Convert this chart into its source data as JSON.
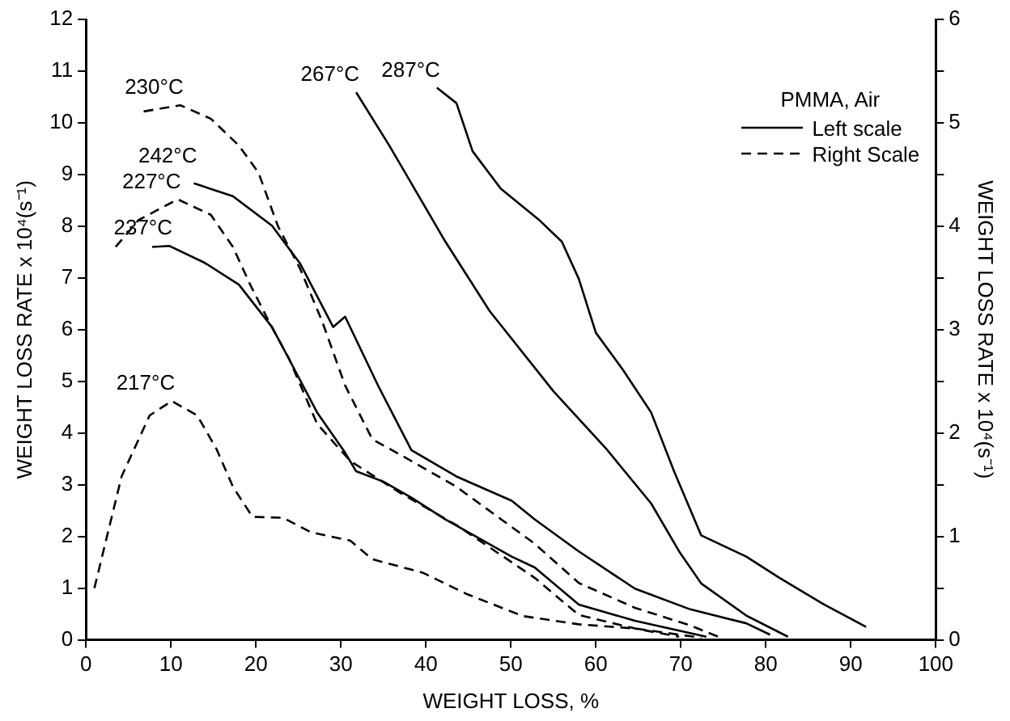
{
  "chart_data": {
    "type": "line",
    "xlabel": "WEIGHT LOSS, %",
    "ylabel": "WEIGHT LOSS RATE x 10⁴(s⁻¹)",
    "y2label": "WEIGHT LOSS RATE x 10⁴(s⁻¹)",
    "legend_title": "PMMA, Air",
    "grid": false,
    "marker": "none",
    "xlim": [
      0,
      100
    ],
    "xticks": [
      0,
      10,
      20,
      30,
      40,
      50,
      60,
      70,
      80,
      90,
      100
    ],
    "ylim": [
      0,
      12
    ],
    "yticks": [
      0,
      1,
      2,
      3,
      4,
      5,
      6,
      7,
      8,
      9,
      10,
      11,
      12
    ],
    "y2lim": [
      0,
      6
    ],
    "y2ticks": [
      0,
      {
        "value": 0.5,
        "label": null
      },
      1,
      {
        "value": 1.5,
        "label": null
      },
      2,
      {
        "value": 2.5,
        "label": null
      },
      3,
      {
        "value": 3.5,
        "label": null
      },
      4,
      {
        "value": 4.5,
        "label": null
      },
      5,
      {
        "value": 5.5,
        "label": null
      },
      6
    ],
    "series": [
      {
        "name": "217°C",
        "color": "#000000",
        "line_style": "dashed",
        "axis": "y2",
        "x": [
          1.0,
          4.2,
          7.5,
          10.1,
          13.1,
          15.4,
          17.3,
          19.6,
          23.2,
          26.5,
          31.1,
          33.7,
          39.6,
          44.9,
          51.4,
          58,
          64.6,
          72.4
        ],
        "values": [
          0.5,
          1.58,
          2.17,
          2.31,
          2.17,
          1.84,
          1.48,
          1.19,
          1.18,
          1.04,
          0.96,
          0.78,
          0.65,
          0.44,
          0.23,
          0.15,
          0.11,
          0.02
        ]
      },
      {
        "name": "227°C",
        "color": "#000000",
        "line_style": "dashed",
        "axis": "y2",
        "x": [
          3.5,
          6.2,
          10.8,
          14.7,
          17.3,
          19.3,
          21.9,
          23.9,
          27.2,
          31.1,
          37,
          43.6,
          50.1,
          52.8,
          58,
          64.6,
          69.8
        ],
        "values": [
          3.8,
          4.06,
          4.26,
          4.11,
          3.8,
          3.44,
          3.02,
          2.72,
          2.09,
          1.73,
          1.42,
          1.11,
          0.75,
          0.6,
          0.24,
          0.11,
          0.03
        ]
      },
      {
        "name": "230°C",
        "color": "#000000",
        "line_style": "dashed",
        "axis": "y2",
        "x": [
          6.8,
          11.1,
          14.7,
          18,
          20.3,
          22.6,
          25.2,
          27.8,
          30.5,
          33.7,
          38.3,
          43.6,
          52.8,
          58,
          64.6,
          71.1,
          74.4
        ],
        "values": [
          5.11,
          5.17,
          5.04,
          4.78,
          4.52,
          4.0,
          3.59,
          3.08,
          2.46,
          1.94,
          1.73,
          1.48,
          0.93,
          0.55,
          0.31,
          0.14,
          0.03
        ]
      },
      {
        "name": "237°C",
        "color": "#000000",
        "line_style": "solid",
        "axis": "y",
        "x": [
          7.8,
          9.8,
          14.0,
          18.0,
          21.9,
          23.9,
          27.2,
          30.5,
          31.8,
          35.0,
          38.3,
          42.3,
          46.2,
          50.1,
          52.8,
          58,
          64.6,
          73
        ],
        "values": [
          7.6,
          7.62,
          7.29,
          6.87,
          6.05,
          5.43,
          4.4,
          3.62,
          3.26,
          3.06,
          2.75,
          2.33,
          1.97,
          1.61,
          1.4,
          0.68,
          0.37,
          0.06
        ]
      },
      {
        "name": "242°C",
        "color": "#000000",
        "line_style": "solid",
        "axis": "y",
        "x": [
          12.7,
          17.3,
          21.9,
          25.2,
          29.1,
          30.5,
          34.4,
          38.3,
          43.6,
          50.1,
          52.8,
          58,
          64.6,
          71.1,
          77.7,
          80.5
        ],
        "values": [
          8.83,
          8.58,
          8.01,
          7.28,
          6.05,
          6.25,
          4.91,
          3.67,
          3.16,
          2.69,
          2.33,
          1.71,
          0.99,
          0.59,
          0.32,
          0.1
        ]
      },
      {
        "name": "267°C",
        "color": "#000000",
        "line_style": "solid",
        "axis": "y",
        "x": [
          31.8,
          35.7,
          39.0,
          42.3,
          47.5,
          55,
          61.3,
          66.5,
          69.8,
          72.4,
          77.7,
          82.6
        ],
        "values": [
          10.59,
          9.56,
          8.63,
          7.7,
          6.36,
          4.81,
          3.68,
          2.64,
          1.71,
          1.09,
          0.47,
          0.06
        ]
      },
      {
        "name": "287°C",
        "color": "#000000",
        "line_style": "solid",
        "axis": "y",
        "x": [
          41.3,
          43.6,
          45.5,
          48.8,
          53.4,
          56.0,
          58.0,
          60.0,
          63.2,
          66.5,
          69.2,
          72.4,
          77.7,
          81.6,
          86.9,
          91.8
        ],
        "values": [
          10.68,
          10.38,
          9.45,
          8.73,
          8.11,
          7.7,
          6.98,
          5.94,
          5.22,
          4.4,
          3.26,
          2.02,
          1.61,
          1.2,
          0.68,
          0.25
        ]
      }
    ],
    "annotations": [
      "Left scale",
      "Right Scale"
    ]
  }
}
